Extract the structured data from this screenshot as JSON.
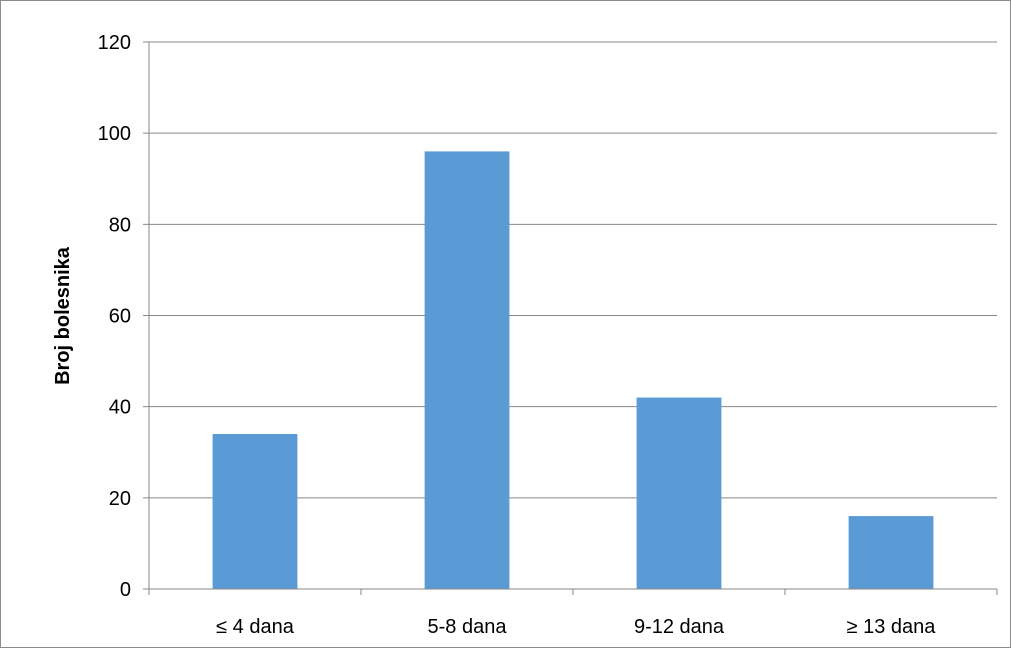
{
  "colors": {
    "bar": "#5b9bd5",
    "gridline": "#878787",
    "axis": "#878787",
    "background": "#ffffff"
  },
  "chart_data": {
    "type": "bar",
    "title": "",
    "xlabel": "",
    "ylabel": "Broj bolesnika",
    "categories": [
      "≤ 4 dana",
      "5-8 dana",
      "9-12 dana",
      "≥ 13 dana"
    ],
    "values": [
      34,
      96,
      42,
      16
    ],
    "ylim": [
      0,
      120
    ],
    "yticks": [
      0,
      20,
      40,
      60,
      80,
      100,
      120
    ],
    "grid": true,
    "legend": "none"
  }
}
